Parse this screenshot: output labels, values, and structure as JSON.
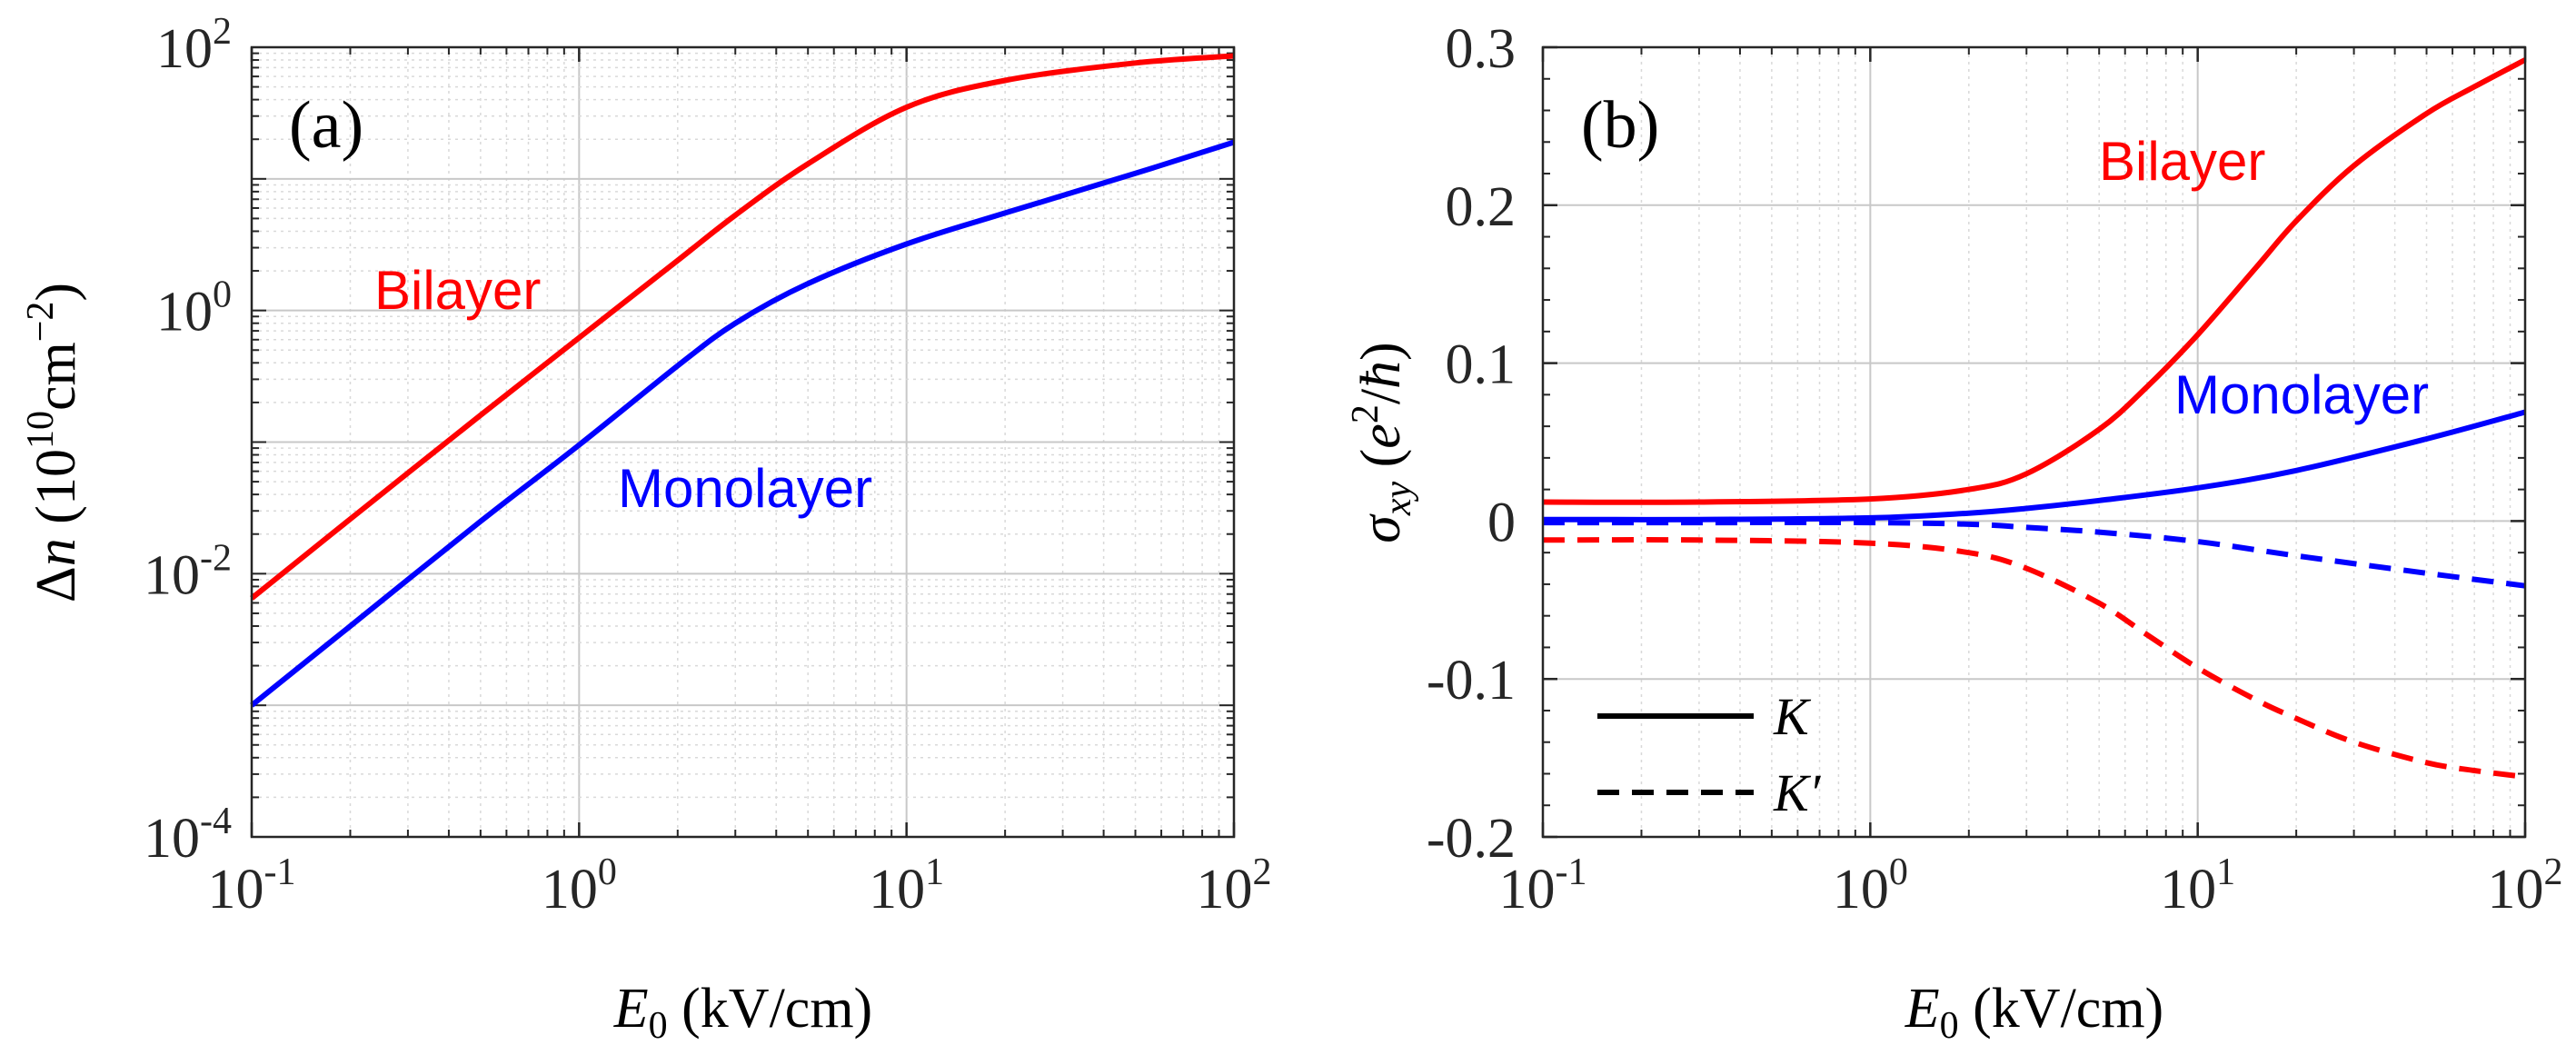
{
  "chart_data": [
    {
      "type": "line",
      "panel_label": "(a)",
      "xscale": "log",
      "yscale": "log",
      "xlim": [
        0.1,
        100
      ],
      "ylim": [
        0.0001,
        100
      ],
      "x_ticks": [
        {
          "value": 0.1,
          "base": "10",
          "exp": "-1"
        },
        {
          "value": 1,
          "base": "10",
          "exp": "0"
        },
        {
          "value": 10,
          "base": "10",
          "exp": "1"
        },
        {
          "value": 100,
          "base": "10",
          "exp": "2"
        }
      ],
      "y_ticks": [
        {
          "value": 0.0001,
          "base": "10",
          "exp": "-4"
        },
        {
          "value": 0.01,
          "base": "10",
          "exp": "-2"
        },
        {
          "value": 1,
          "base": "10",
          "exp": "0"
        },
        {
          "value": 100,
          "base": "10",
          "exp": "2"
        }
      ],
      "xlabel": {
        "sym": "E",
        "sub": "0",
        "unit": " (kV/cm)"
      },
      "ylabel": {
        "sym": "Δ",
        "var": "n",
        "pre": " (10",
        "exp1": "10",
        "mid": "cm",
        "exp2": "−2",
        "post": ")"
      },
      "grid": true,
      "series": [
        {
          "name": "Bilayer",
          "color": "#ff0000",
          "style": "solid",
          "x": [
            0.1,
            0.2,
            0.5,
            1,
            2,
            3,
            5,
            10,
            20,
            50,
            100
          ],
          "y": [
            0.0065,
            0.026,
            0.16,
            0.62,
            2.4,
            5.3,
            13,
            35,
            56,
            76,
            86
          ]
        },
        {
          "name": "Monolayer",
          "color": "#0000ff",
          "style": "solid",
          "x": [
            0.1,
            0.2,
            0.5,
            1,
            2,
            3,
            5,
            10,
            20,
            50,
            100
          ],
          "y": [
            0.001,
            0.004,
            0.025,
            0.095,
            0.38,
            0.8,
            1.6,
            3.2,
            5.5,
            11,
            19
          ]
        }
      ],
      "annotations": [
        {
          "text": "Bilayer",
          "color": "#ff0000"
        },
        {
          "text": "Monolayer",
          "color": "#0000ff"
        }
      ]
    },
    {
      "type": "line",
      "panel_label": "(b)",
      "xscale": "log",
      "yscale": "linear",
      "xlim": [
        0.1,
        100
      ],
      "ylim": [
        -0.2,
        0.3
      ],
      "x_ticks": [
        {
          "value": 0.1,
          "base": "10",
          "exp": "-1"
        },
        {
          "value": 1,
          "base": "10",
          "exp": "0"
        },
        {
          "value": 10,
          "base": "10",
          "exp": "1"
        },
        {
          "value": 100,
          "base": "10",
          "exp": "2"
        }
      ],
      "y_ticks": [
        {
          "value": 0.3,
          "label": "0.3"
        },
        {
          "value": 0.2,
          "label": "0.2"
        },
        {
          "value": 0.1,
          "label": "0.1"
        },
        {
          "value": 0,
          "label": "0"
        },
        {
          "value": -0.1,
          "label": "-0.1"
        },
        {
          "value": -0.2,
          "label": "-0.2"
        }
      ],
      "xlabel": {
        "sym": "E",
        "sub": "0",
        "unit": " (kV/cm)"
      },
      "ylabel": {
        "sym": "σ",
        "sub": "xy",
        "pre": " (",
        "e": "e",
        "exp": "2",
        "slash": "/",
        "hbar": "ħ",
        "post": ")"
      },
      "grid": true,
      "series": [
        {
          "name": "Bilayer K",
          "color": "#ff0000",
          "style": "solid",
          "x": [
            0.1,
            0.3,
            1,
            2,
            3,
            5,
            7,
            10,
            15,
            20,
            30,
            50,
            70,
            100
          ],
          "y": [
            0.012,
            0.012,
            0.014,
            0.02,
            0.03,
            0.058,
            0.085,
            0.118,
            0.16,
            0.19,
            0.225,
            0.258,
            0.275,
            0.292
          ]
        },
        {
          "name": "Monolayer K",
          "color": "#0000ff",
          "style": "solid",
          "x": [
            0.1,
            0.3,
            1,
            2,
            3,
            5,
            10,
            20,
            50,
            100
          ],
          "y": [
            0.001,
            0.001,
            0.002,
            0.005,
            0.008,
            0.013,
            0.021,
            0.032,
            0.052,
            0.069
          ]
        },
        {
          "name": "Bilayer K'",
          "color": "#ff0000",
          "style": "dashed",
          "x": [
            0.1,
            0.3,
            1,
            2,
            3,
            5,
            7,
            10,
            15,
            20,
            30,
            50,
            70,
            100
          ],
          "y": [
            -0.012,
            -0.012,
            -0.014,
            -0.02,
            -0.03,
            -0.052,
            -0.072,
            -0.093,
            -0.113,
            -0.125,
            -0.14,
            -0.153,
            -0.158,
            -0.162
          ]
        },
        {
          "name": "Monolayer K'",
          "color": "#0000ff",
          "style": "dashed",
          "x": [
            0.1,
            0.3,
            1,
            2,
            3,
            5,
            10,
            20,
            50,
            100
          ],
          "y": [
            -0.001,
            -0.001,
            -0.001,
            -0.002,
            -0.004,
            -0.007,
            -0.013,
            -0.022,
            -0.033,
            -0.041
          ]
        }
      ],
      "annotations": [
        {
          "text": "Bilayer",
          "color": "#ff0000"
        },
        {
          "text": "Monolayer",
          "color": "#0000ff"
        }
      ],
      "legend": {
        "placement": "bottom-left",
        "entries": [
          {
            "label": "K",
            "style": "solid"
          },
          {
            "label": "K′",
            "style": "dashed"
          }
        ]
      }
    }
  ]
}
